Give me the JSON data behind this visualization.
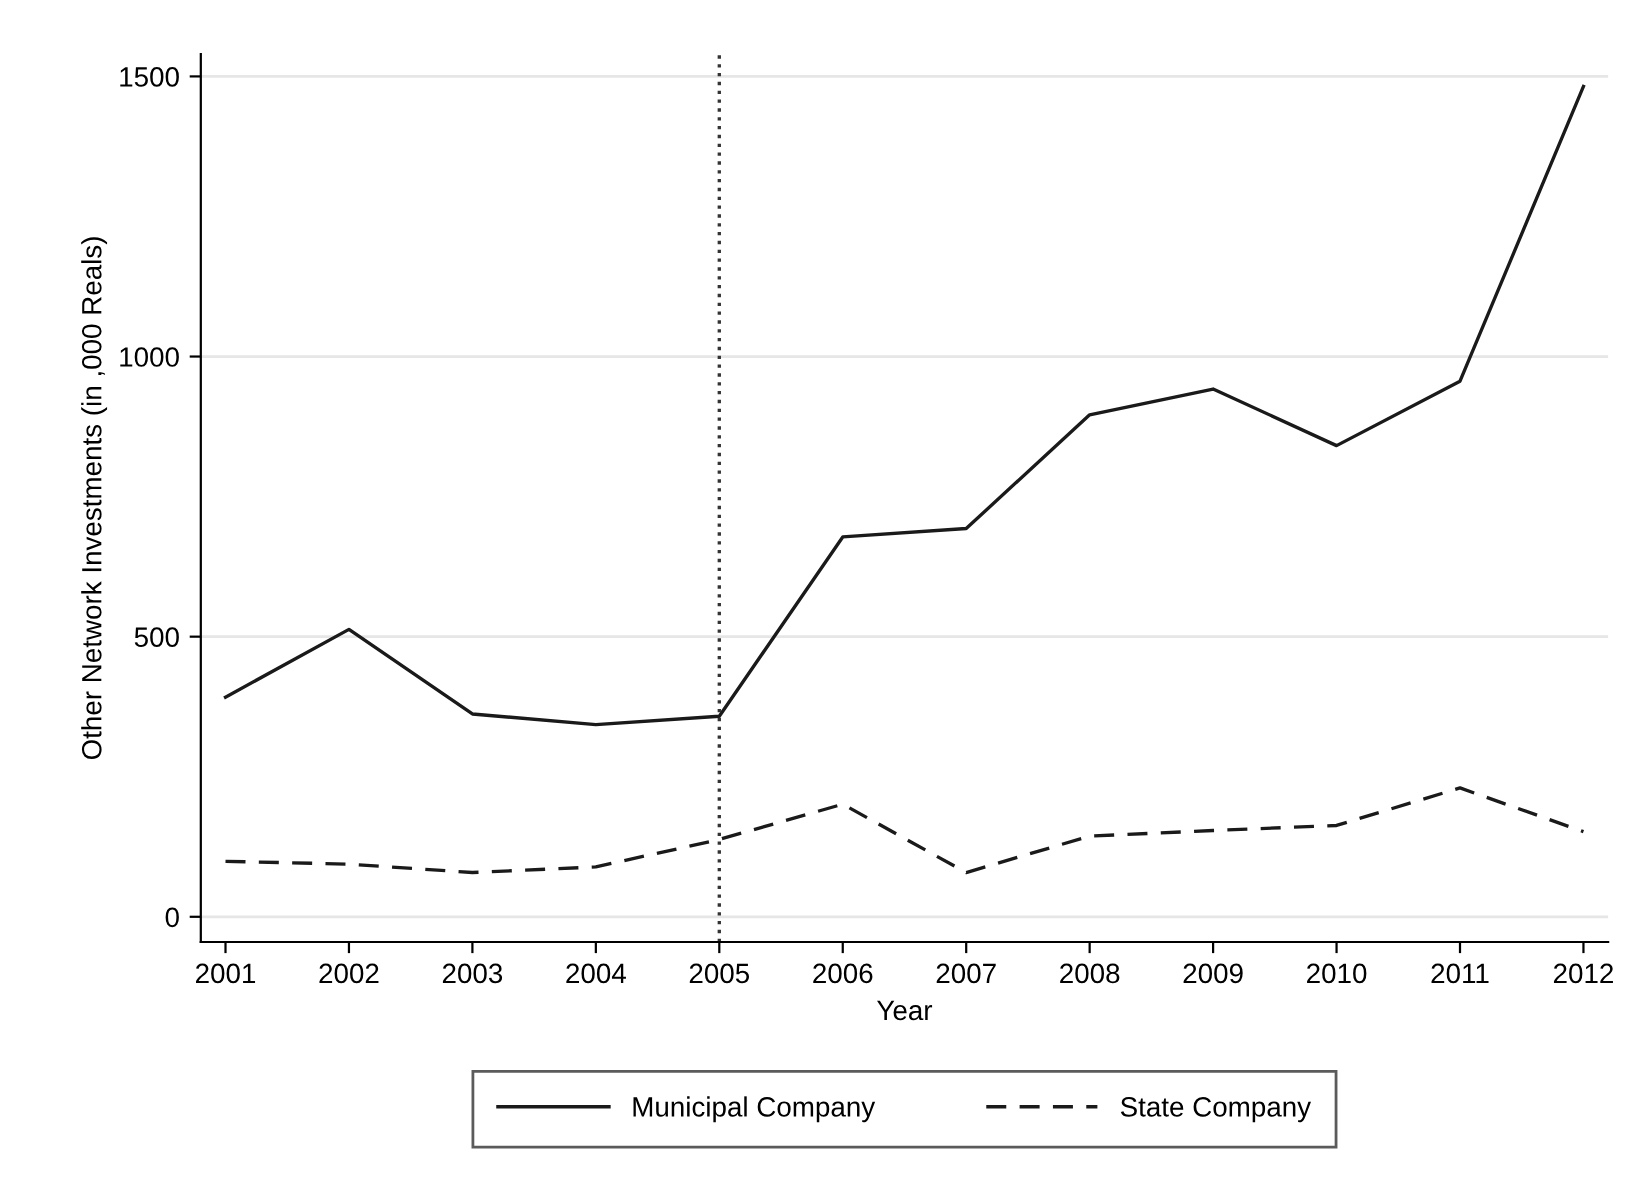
{
  "chart_data": {
    "type": "line",
    "xlabel": "Year",
    "ylabel": "Other Network Investments (in ,000 Reals)",
    "x": [
      2001,
      2002,
      2003,
      2004,
      2005,
      2006,
      2007,
      2008,
      2009,
      2010,
      2011,
      2012
    ],
    "series": [
      {
        "name": "Municipal Company",
        "color": "#1a1a1a",
        "line_style": "solid",
        "values": [
          392,
          513,
          362,
          343,
          358,
          678,
          693,
          896,
          942,
          841,
          956,
          1482
        ]
      },
      {
        "name": "State Company",
        "color": "#1a1a1a",
        "line_style": "dashed",
        "values": [
          99,
          94,
          79,
          89,
          138,
          201,
          79,
          144,
          154,
          163,
          230,
          152
        ]
      }
    ],
    "xlim": [
      2000.8,
      2012.2
    ],
    "xticks": [
      2001,
      2002,
      2003,
      2004,
      2005,
      2006,
      2007,
      2008,
      2009,
      2010,
      2011,
      2012
    ],
    "ylim": [
      -45,
      1540
    ],
    "yticks": [
      0,
      500,
      1000,
      1500
    ],
    "ref_lines": [
      {
        "axis": "x",
        "value": 2005,
        "line_style": "dotted",
        "color": "#333333"
      }
    ],
    "grid": "y",
    "legend": "bottom",
    "marker": "none"
  }
}
